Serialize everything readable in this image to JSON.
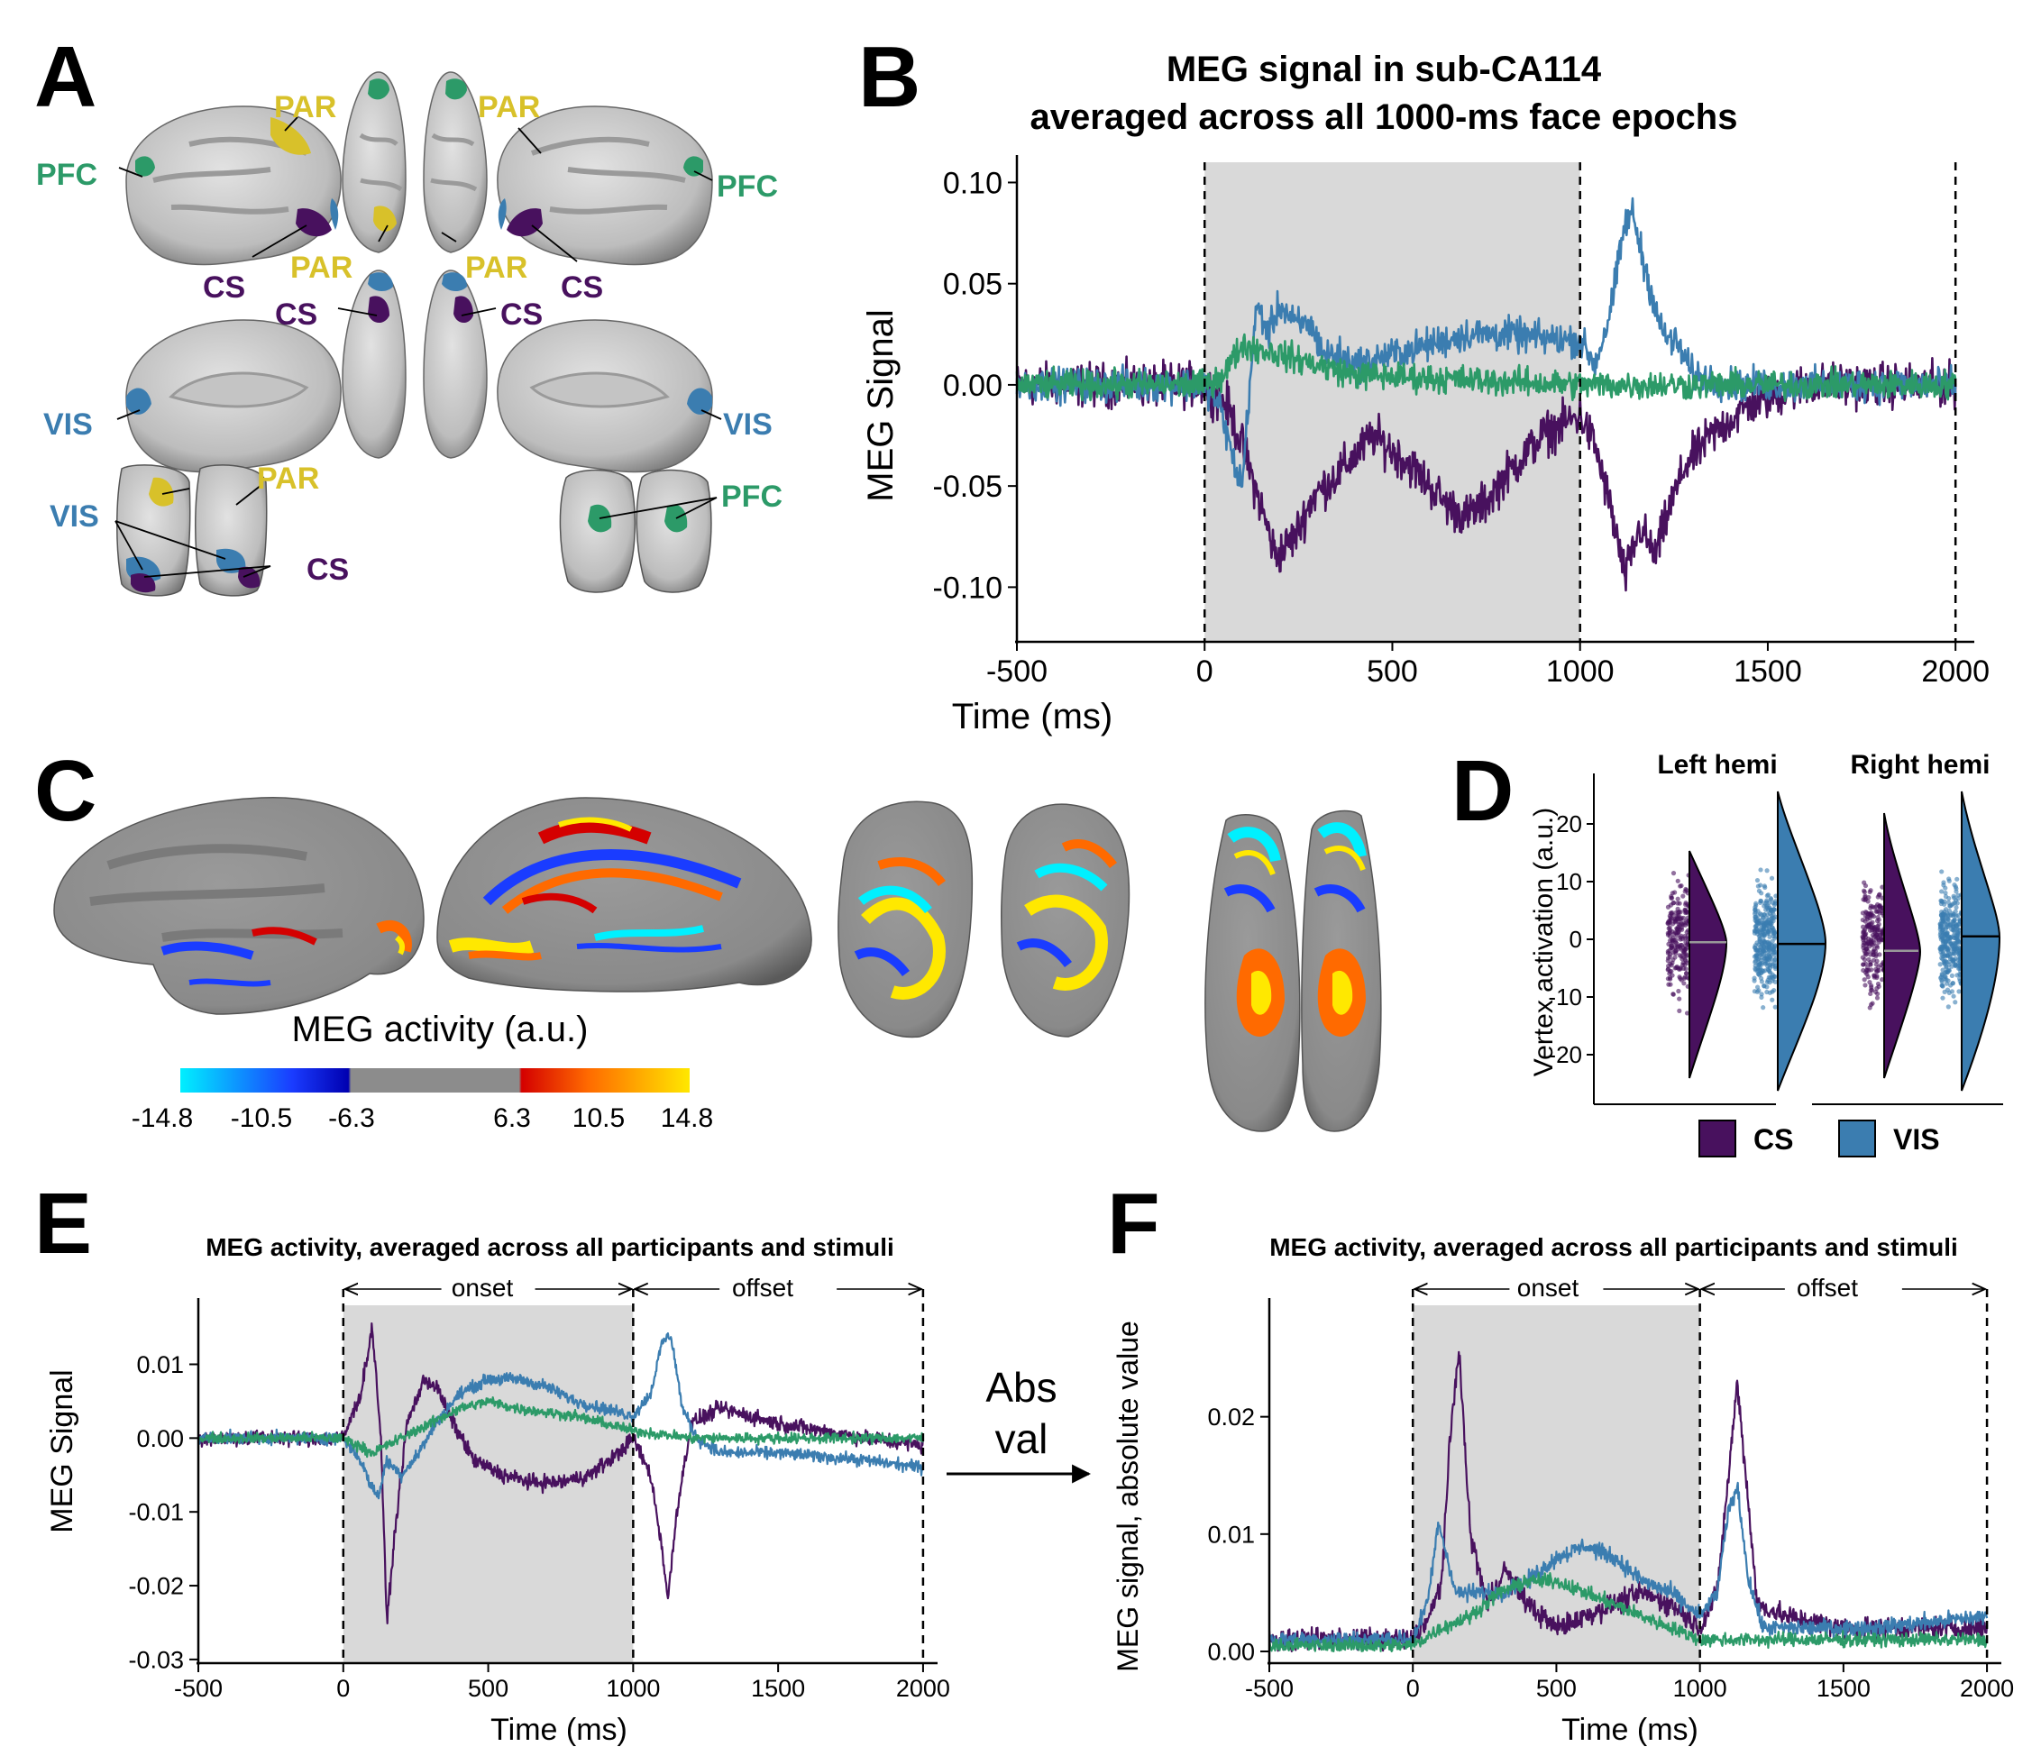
{
  "panel_letters": [
    "A",
    "B",
    "C",
    "D",
    "E",
    "F"
  ],
  "colors": {
    "CS": "#48115e",
    "VIS": "#3b7db0",
    "PFC": "#2c9a68",
    "PAR": "#d8c12a",
    "shade": "#d9d9d9",
    "cortex_light": "#d4d4d4",
    "cortex_dark": "#8f8f8f"
  },
  "panel_a": {
    "labels": [
      "PAR",
      "PAR",
      "PFC",
      "PFC",
      "PAR",
      "PAR",
      "CS",
      "CS",
      "CS",
      "CS",
      "VIS",
      "VIS",
      "PAR",
      "VIS",
      "CS",
      "PFC"
    ],
    "region_colors": {
      "PAR": "#d8c12a",
      "PFC": "#2c9a68",
      "CS": "#48115e",
      "VIS": "#3b7db0"
    }
  },
  "panel_c": {
    "colorbar_title": "MEG activity (a.u.)",
    "colorbar_ticks": [
      "-14.8",
      "-10.5",
      "-6.3",
      "6.3",
      "10.5",
      "14.8"
    ],
    "colorbar_colors": [
      "#00f0ff",
      "#1a3cff",
      "#0000b0",
      "#8c8c8c",
      "#d40000",
      "#ff6a00",
      "#ffe800"
    ]
  },
  "panel_d": {
    "ylabel": "Vertex activation (a.u.)",
    "yticks": [
      "20",
      "10",
      "0",
      "-10",
      "-20"
    ],
    "groups": [
      "Left hemi",
      "Right hemi"
    ],
    "legend": [
      "CS",
      "VIS"
    ],
    "medians": {
      "left_CS": -0.5,
      "left_VIS": -0.8,
      "right_CS": -2.0,
      "right_VIS": 0.5
    }
  },
  "middle_arrow_label": [
    "Abs",
    "val"
  ],
  "chart_data": [
    {
      "panel": "B",
      "type": "line",
      "title": "MEG signal in sub-CA114",
      "subtitle": "averaged across all 1000-ms face epochs",
      "xlabel": "Time (ms)",
      "ylabel": "MEG Signal",
      "xlim": [
        -500,
        2050
      ],
      "ylim": [
        -0.127,
        0.11
      ],
      "xticks": [
        -500,
        0,
        500,
        1000,
        1500,
        2000
      ],
      "xtick_labels": [
        "-500",
        "0",
        "500",
        "1000",
        "1500",
        "2000"
      ],
      "yticks": [
        0.1,
        0.05,
        0.0,
        -0.05,
        -0.1
      ],
      "ytick_labels": [
        "0.10",
        "0.05",
        "0.00",
        "-0.05",
        "-0.10"
      ],
      "shaded_x": [
        0,
        1000
      ],
      "vlines": [
        0,
        1000,
        2000
      ],
      "series": [
        {
          "color": "#48115e",
          "noise": 0.009,
          "x": [
            -500,
            0,
            60,
            100,
            150,
            190,
            240,
            290,
            350,
            450,
            550,
            650,
            700,
            750,
            800,
            900,
            1000,
            1040,
            1080,
            1120,
            1160,
            1200,
            1240,
            1280,
            1350,
            1450,
            1600,
            2000
          ],
          "values": [
            0,
            0,
            -0.01,
            -0.03,
            -0.06,
            -0.085,
            -0.075,
            -0.055,
            -0.045,
            -0.025,
            -0.04,
            -0.06,
            -0.065,
            -0.058,
            -0.045,
            -0.025,
            -0.015,
            -0.03,
            -0.06,
            -0.095,
            -0.07,
            -0.085,
            -0.06,
            -0.04,
            -0.025,
            -0.01,
            0,
            0
          ]
        },
        {
          "color": "#3b7db0",
          "noise": 0.007,
          "x": [
            -500,
            0,
            40,
            80,
            100,
            120,
            140,
            170,
            200,
            240,
            280,
            320,
            360,
            400,
            500,
            600,
            700,
            800,
            900,
            1000,
            1040,
            1080,
            1120,
            1140,
            1170,
            1220,
            1260,
            1300,
            1400,
            1600,
            2000
          ],
          "values": [
            0,
            0,
            -0.01,
            -0.04,
            -0.05,
            0.0,
            0.04,
            0.025,
            0.04,
            0.03,
            0.03,
            0.015,
            0.015,
            0.01,
            0.015,
            0.02,
            0.025,
            0.025,
            0.023,
            0.022,
            0.01,
            0.035,
            0.08,
            0.085,
            0.06,
            0.025,
            0.02,
            0.005,
            0,
            0,
            0
          ]
        },
        {
          "color": "#2c9a68",
          "noise": 0.006,
          "x": [
            -500,
            0,
            50,
            100,
            200,
            300,
            400,
            1000,
            1400,
            2000
          ],
          "values": [
            0,
            0,
            0.005,
            0.02,
            0.015,
            0.01,
            0.005,
            0,
            0,
            0
          ]
        }
      ]
    },
    {
      "panel": "E",
      "type": "line",
      "title": "MEG activity, averaged across all participants and stimuli",
      "xlabel": "Time (ms)",
      "ylabel": "MEG Signal",
      "xlim": [
        -500,
        2050
      ],
      "ylim": [
        -0.0305,
        0.018
      ],
      "xticks": [
        -500,
        0,
        500,
        1000,
        1500,
        2000
      ],
      "xtick_labels": [
        "-500",
        "0",
        "500",
        "1000",
        "1500",
        "2000"
      ],
      "yticks": [
        0.01,
        0.0,
        -0.01,
        -0.02,
        -0.03
      ],
      "ytick_labels": [
        "0.01",
        "0.00",
        "-0.01",
        "-0.02",
        "-0.03"
      ],
      "shaded_x": [
        0,
        1000
      ],
      "vlines": [
        0,
        1000,
        2000
      ],
      "annotations": [
        "onset",
        "offset"
      ],
      "series": [
        {
          "color": "#48115e",
          "noise": 0.0009,
          "x": [
            -500,
            -100,
            0,
            60,
            100,
            130,
            150,
            180,
            220,
            280,
            320,
            380,
            450,
            550,
            650,
            750,
            850,
            950,
            1000,
            1060,
            1100,
            1120,
            1150,
            1200,
            1300,
            1500,
            1800,
            2000
          ],
          "values": [
            0,
            0,
            0,
            0.006,
            0.015,
            0.0,
            -0.025,
            -0.012,
            0.002,
            0.008,
            0.007,
            0.002,
            -0.003,
            -0.005,
            -0.006,
            -0.006,
            -0.005,
            -0.002,
            0.0,
            -0.005,
            -0.015,
            -0.022,
            -0.01,
            0.002,
            0.004,
            0.002,
            0.0,
            -0.001
          ]
        },
        {
          "color": "#3b7db0",
          "noise": 0.0007,
          "x": [
            -500,
            0,
            60,
            90,
            120,
            150,
            200,
            260,
            320,
            400,
            500,
            600,
            700,
            800,
            900,
            1000,
            1060,
            1100,
            1130,
            1170,
            1220,
            1300,
            1500,
            1800,
            2000
          ],
          "values": [
            0,
            0,
            -0.003,
            -0.006,
            -0.008,
            -0.003,
            -0.005,
            -0.002,
            0.002,
            0.006,
            0.008,
            0.008,
            0.007,
            0.005,
            0.004,
            0.003,
            0.006,
            0.013,
            0.014,
            0.004,
            0.0,
            -0.002,
            -0.002,
            -0.003,
            -0.004
          ]
        },
        {
          "color": "#2c9a68",
          "noise": 0.0006,
          "x": [
            -500,
            0,
            100,
            200,
            300,
            400,
            500,
            600,
            800,
            1000,
            1200,
            1500,
            2000
          ],
          "values": [
            0,
            0,
            -0.002,
            0.0,
            0.002,
            0.004,
            0.005,
            0.004,
            0.003,
            0.001,
            0.0,
            0.0,
            0.0
          ]
        }
      ]
    },
    {
      "panel": "F",
      "type": "line",
      "title": "MEG activity, averaged across all participants and stimuli",
      "xlabel": "Time (ms)",
      "ylabel": "MEG signal, absolute value",
      "xlim": [
        -500,
        2050
      ],
      "ylim": [
        -0.001,
        0.0295
      ],
      "xticks": [
        -500,
        0,
        500,
        1000,
        1500,
        2000
      ],
      "xtick_labels": [
        "-500",
        "0",
        "500",
        "1000",
        "1500",
        "2000"
      ],
      "yticks": [
        0.02,
        0.01,
        0.0
      ],
      "ytick_labels": [
        "0.02",
        "0.01",
        "0.00"
      ],
      "shaded_x": [
        0,
        1000
      ],
      "vlines": [
        0,
        1000,
        2000
      ],
      "annotations": [
        "onset",
        "offset"
      ],
      "series": [
        {
          "color": "#48115e",
          "noise": 0.0008,
          "x": [
            -500,
            0,
            60,
            100,
            130,
            160,
            200,
            260,
            320,
            400,
            500,
            600,
            700,
            800,
            900,
            1000,
            1060,
            1100,
            1130,
            1160,
            1200,
            1300,
            1500,
            2000
          ],
          "values": [
            0.001,
            0.001,
            0.003,
            0.006,
            0.018,
            0.026,
            0.01,
            0.004,
            0.007,
            0.004,
            0.002,
            0.003,
            0.004,
            0.005,
            0.004,
            0.002,
            0.005,
            0.015,
            0.023,
            0.015,
            0.004,
            0.003,
            0.002,
            0.002
          ]
        },
        {
          "color": "#3b7db0",
          "noise": 0.0006,
          "x": [
            -500,
            0,
            50,
            90,
            120,
            150,
            200,
            300,
            400,
            500,
            600,
            700,
            800,
            900,
            1000,
            1060,
            1100,
            1130,
            1170,
            1220,
            1300,
            1600,
            2000
          ],
          "values": [
            0.001,
            0.001,
            0.004,
            0.011,
            0.008,
            0.005,
            0.005,
            0.005,
            0.006,
            0.008,
            0.009,
            0.008,
            0.006,
            0.005,
            0.003,
            0.005,
            0.012,
            0.014,
            0.006,
            0.002,
            0.002,
            0.002,
            0.003
          ]
        },
        {
          "color": "#2c9a68",
          "noise": 0.0005,
          "x": [
            -500,
            0,
            100,
            200,
            300,
            400,
            500,
            600,
            800,
            1000,
            1200,
            1500,
            2000
          ],
          "values": [
            0.0005,
            0.0005,
            0.002,
            0.003,
            0.005,
            0.006,
            0.006,
            0.005,
            0.003,
            0.001,
            0.001,
            0.001,
            0.001
          ]
        }
      ]
    }
  ]
}
